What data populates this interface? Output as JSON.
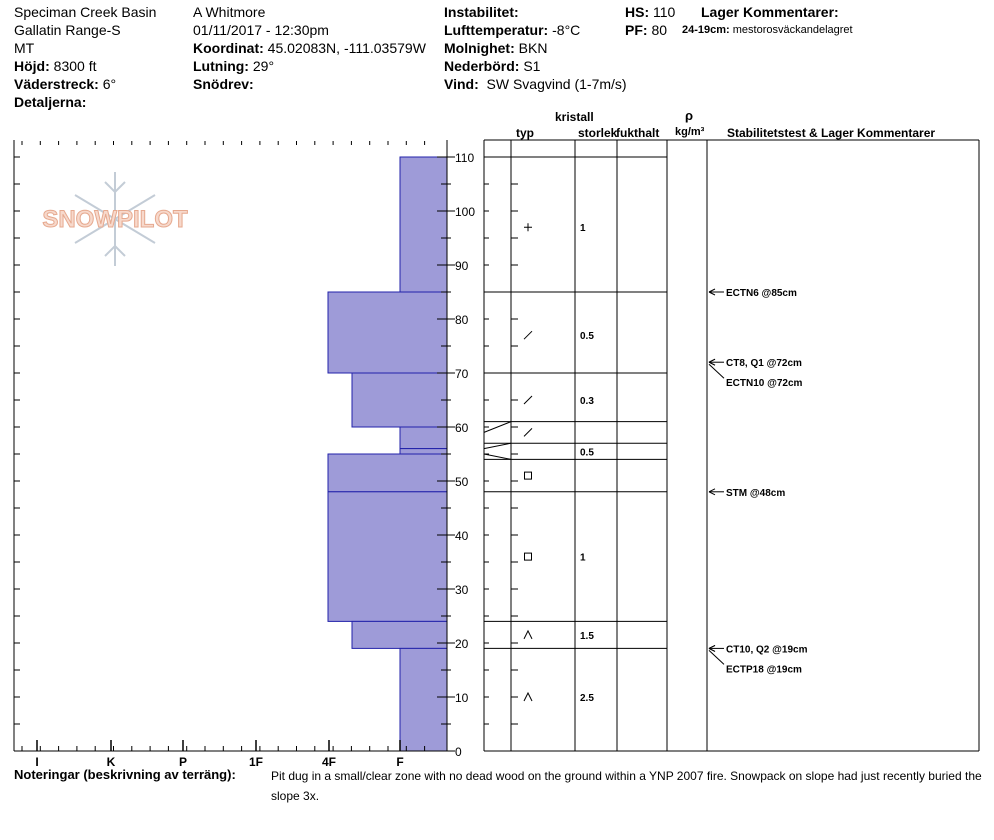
{
  "header": {
    "location": "Speciman Creek Basin",
    "range": "Gallatin Range-S",
    "state": "MT",
    "elevation_label": "Höjd:",
    "elevation": "8300 ft",
    "aspect_label": "Väderstreck:",
    "aspect": "6°",
    "details_label": "Detaljerna:",
    "observer": "A Whitmore",
    "datetime": "01/11/2017 - 12:30pm",
    "coord_label": "Koordinat:",
    "coord": "45.02083N, -111.03579W",
    "slope_label": "Lutning:",
    "slope": "29°",
    "drift_label": "Snödrev:",
    "instability_label": "Instabilitet:",
    "airtemp_label": "Lufttemperatur:",
    "airtemp": "-8°C",
    "sky_label": "Molnighet:",
    "sky": "BKN",
    "precip_label": "Nederbörd:",
    "precip": "S1",
    "wind_label": "Vind:",
    "wind": "SW Svagvind (1-7m/s)",
    "hs_label": "HS:",
    "hs": "110",
    "pf_label": "PF:",
    "pf": "80",
    "layer_comments_label": "Lager Kommentarer:",
    "layer_comment_range": "24-19cm:",
    "layer_comment": "mestorosväckandelagret"
  },
  "logo_text": "SNOWPILOT",
  "columns": {
    "crystal": "kristall",
    "type": "typ",
    "size": "storlek",
    "moisture": "fukthalt",
    "rho": "ρ",
    "density_unit": "kg/m³",
    "stability": "Stabilitetstest & Lager Kommentarer"
  },
  "notes": {
    "label": "Noteringar (beskrivning av terräng):",
    "text": "Pit dug in a small/clear zone with no dead wood on the ground within a YNP 2007 fire. Snowpack on slope had just recently buried the slope 3x."
  },
  "chart_data": {
    "type": "snow-profile",
    "hardness_ticks": [
      "I",
      "K",
      "P",
      "1F",
      "4F",
      "F"
    ],
    "ylim": [
      0,
      110
    ],
    "y_ticks": [
      0,
      10,
      20,
      30,
      40,
      50,
      60,
      70,
      80,
      90,
      100,
      110
    ],
    "hardness_layers": [
      {
        "top": 110,
        "bottom": 85,
        "hardness": "F"
      },
      {
        "top": 85,
        "bottom": 70,
        "hardness": "4F+"
      },
      {
        "top": 70,
        "bottom": 60,
        "hardness": "4F-"
      },
      {
        "top": 60,
        "bottom": 56,
        "hardness": "F"
      },
      {
        "top": 56,
        "bottom": 55,
        "hardness": "F"
      },
      {
        "top": 55,
        "bottom": 48,
        "hardness": "4F+"
      },
      {
        "top": 48,
        "bottom": 24,
        "hardness": "4F+"
      },
      {
        "top": 24,
        "bottom": 19,
        "hardness": "4F-"
      },
      {
        "top": 19,
        "bottom": 0,
        "hardness": "F"
      }
    ],
    "layer_boundaries": [
      110,
      85,
      70,
      61,
      57,
      54,
      48,
      24,
      19
    ],
    "boundary_links": [
      [
        61,
        59
      ],
      [
        57,
        56
      ],
      [
        54,
        55
      ]
    ],
    "grains": [
      {
        "y": 97,
        "symbol": "plus",
        "size": "1"
      },
      {
        "y": 77,
        "symbol": "slash",
        "size": "0.5"
      },
      {
        "y": 65,
        "symbol": "slash",
        "size": "0.3"
      },
      {
        "y": 59,
        "symbol": "slash",
        "size": ""
      },
      {
        "y": 55.5,
        "symbol": "",
        "size": "0.5"
      },
      {
        "y": 51,
        "symbol": "square",
        "size": ""
      },
      {
        "y": 36,
        "symbol": "square",
        "size": "1"
      },
      {
        "y": 21.5,
        "symbol": "caret",
        "size": "1.5"
      },
      {
        "y": 10,
        "symbol": "caret",
        "size": "2.5"
      }
    ],
    "tests": [
      {
        "y": 85,
        "label": "ECTN6 @85cm"
      },
      {
        "y": 72,
        "label": "CT8, Q1 @72cm"
      },
      {
        "y": 72,
        "label": "ECTN10 @72cm",
        "offset": 1
      },
      {
        "y": 48,
        "label": "STM @48cm"
      },
      {
        "y": 19,
        "label": "CT10, Q2 @19cm"
      },
      {
        "y": 19,
        "label": "ECTP18 @19cm",
        "offset": 1
      }
    ],
    "colors": {
      "fill": "#9e9bd8",
      "stroke": "#2222aa"
    }
  }
}
